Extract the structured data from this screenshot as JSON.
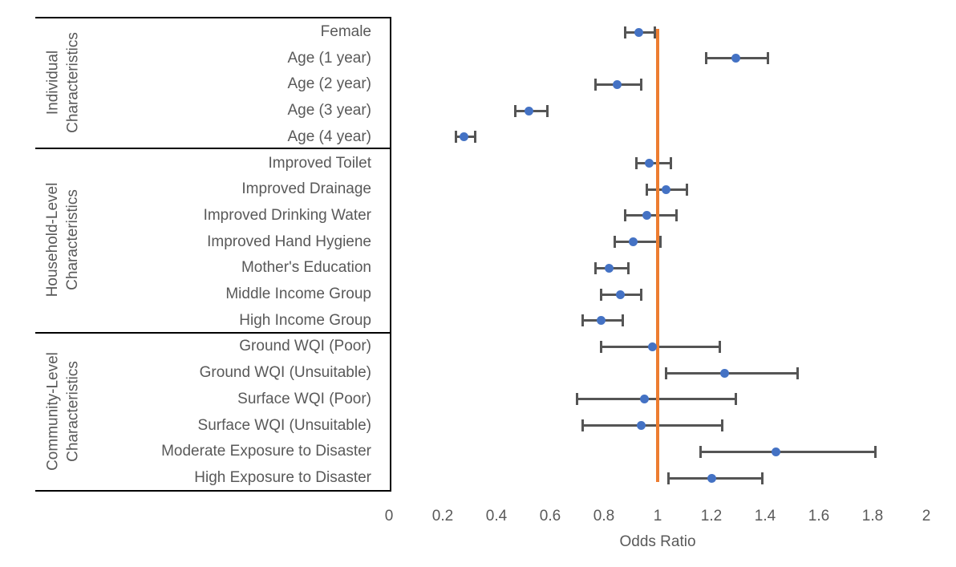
{
  "chart_data": {
    "type": "scatter",
    "subtype": "forest-plot",
    "title": "",
    "xlabel": "Odds Ratio",
    "x_axis": {
      "min": 0,
      "max": 2,
      "ticks": [
        {
          "value": 0,
          "label": "0"
        },
        {
          "value": 0.2,
          "label": "0.2"
        },
        {
          "value": 0.4,
          "label": "0.4"
        },
        {
          "value": 0.6,
          "label": "0.6"
        },
        {
          "value": 0.8,
          "label": "0.8"
        },
        {
          "value": 1,
          "label": "1"
        },
        {
          "value": 1.2,
          "label": "1.2"
        },
        {
          "value": 1.4,
          "label": "1.4"
        },
        {
          "value": 1.6,
          "label": "1.6"
        },
        {
          "value": 1.8,
          "label": "1.8"
        },
        {
          "value": 2,
          "label": "2"
        }
      ]
    },
    "reference_line": {
      "value": 1,
      "color": "#ED7D31"
    },
    "marker_color": "#4472C4",
    "errorbar_color": "#555555",
    "text_color": "#595959",
    "border_color": "#000000",
    "groups": [
      {
        "name_lines": [
          "Individual",
          "Characteristics"
        ],
        "start": 0,
        "end": 4
      },
      {
        "name_lines": [
          "Household-Level",
          "Characteristics"
        ],
        "start": 5,
        "end": 11
      },
      {
        "name_lines": [
          "Community-Level",
          "Characteristics"
        ],
        "start": 12,
        "end": 17
      }
    ],
    "rows": [
      {
        "label": "Female",
        "or": 0.93,
        "ci_low": 0.88,
        "ci_high": 0.99
      },
      {
        "label": "Age (1 year)",
        "or": 1.29,
        "ci_low": 1.18,
        "ci_high": 1.41
      },
      {
        "label": "Age (2 year)",
        "or": 0.85,
        "ci_low": 0.77,
        "ci_high": 0.94
      },
      {
        "label": "Age (3 year)",
        "or": 0.52,
        "ci_low": 0.47,
        "ci_high": 0.59
      },
      {
        "label": "Age (4 year)",
        "or": 0.28,
        "ci_low": 0.25,
        "ci_high": 0.32
      },
      {
        "label": "Improved Toilet",
        "or": 0.97,
        "ci_low": 0.92,
        "ci_high": 1.05
      },
      {
        "label": "Improved Drainage",
        "or": 1.03,
        "ci_low": 0.96,
        "ci_high": 1.11
      },
      {
        "label": "Improved Drinking Water",
        "or": 0.96,
        "ci_low": 0.88,
        "ci_high": 1.07
      },
      {
        "label": "Improved Hand Hygiene",
        "or": 0.91,
        "ci_low": 0.84,
        "ci_high": 1.01
      },
      {
        "label": "Mother's Education",
        "or": 0.82,
        "ci_low": 0.77,
        "ci_high": 0.89
      },
      {
        "label": "Middle Income Group",
        "or": 0.86,
        "ci_low": 0.79,
        "ci_high": 0.94
      },
      {
        "label": "High Income Group",
        "or": 0.79,
        "ci_low": 0.72,
        "ci_high": 0.87
      },
      {
        "label": "Ground WQI (Poor)",
        "or": 0.98,
        "ci_low": 0.79,
        "ci_high": 1.23
      },
      {
        "label": "Ground WQI (Unsuitable)",
        "or": 1.25,
        "ci_low": 1.03,
        "ci_high": 1.52
      },
      {
        "label": "Surface WQI (Poor)",
        "or": 0.95,
        "ci_low": 0.7,
        "ci_high": 1.29
      },
      {
        "label": "Surface WQI (Unsuitable)",
        "or": 0.94,
        "ci_low": 0.72,
        "ci_high": 1.24
      },
      {
        "label": "Moderate Exposure to Disaster",
        "or": 1.44,
        "ci_low": 1.16,
        "ci_high": 1.81
      },
      {
        "label": "High Exposure to Disaster",
        "or": 1.2,
        "ci_low": 1.04,
        "ci_high": 1.39
      }
    ]
  }
}
